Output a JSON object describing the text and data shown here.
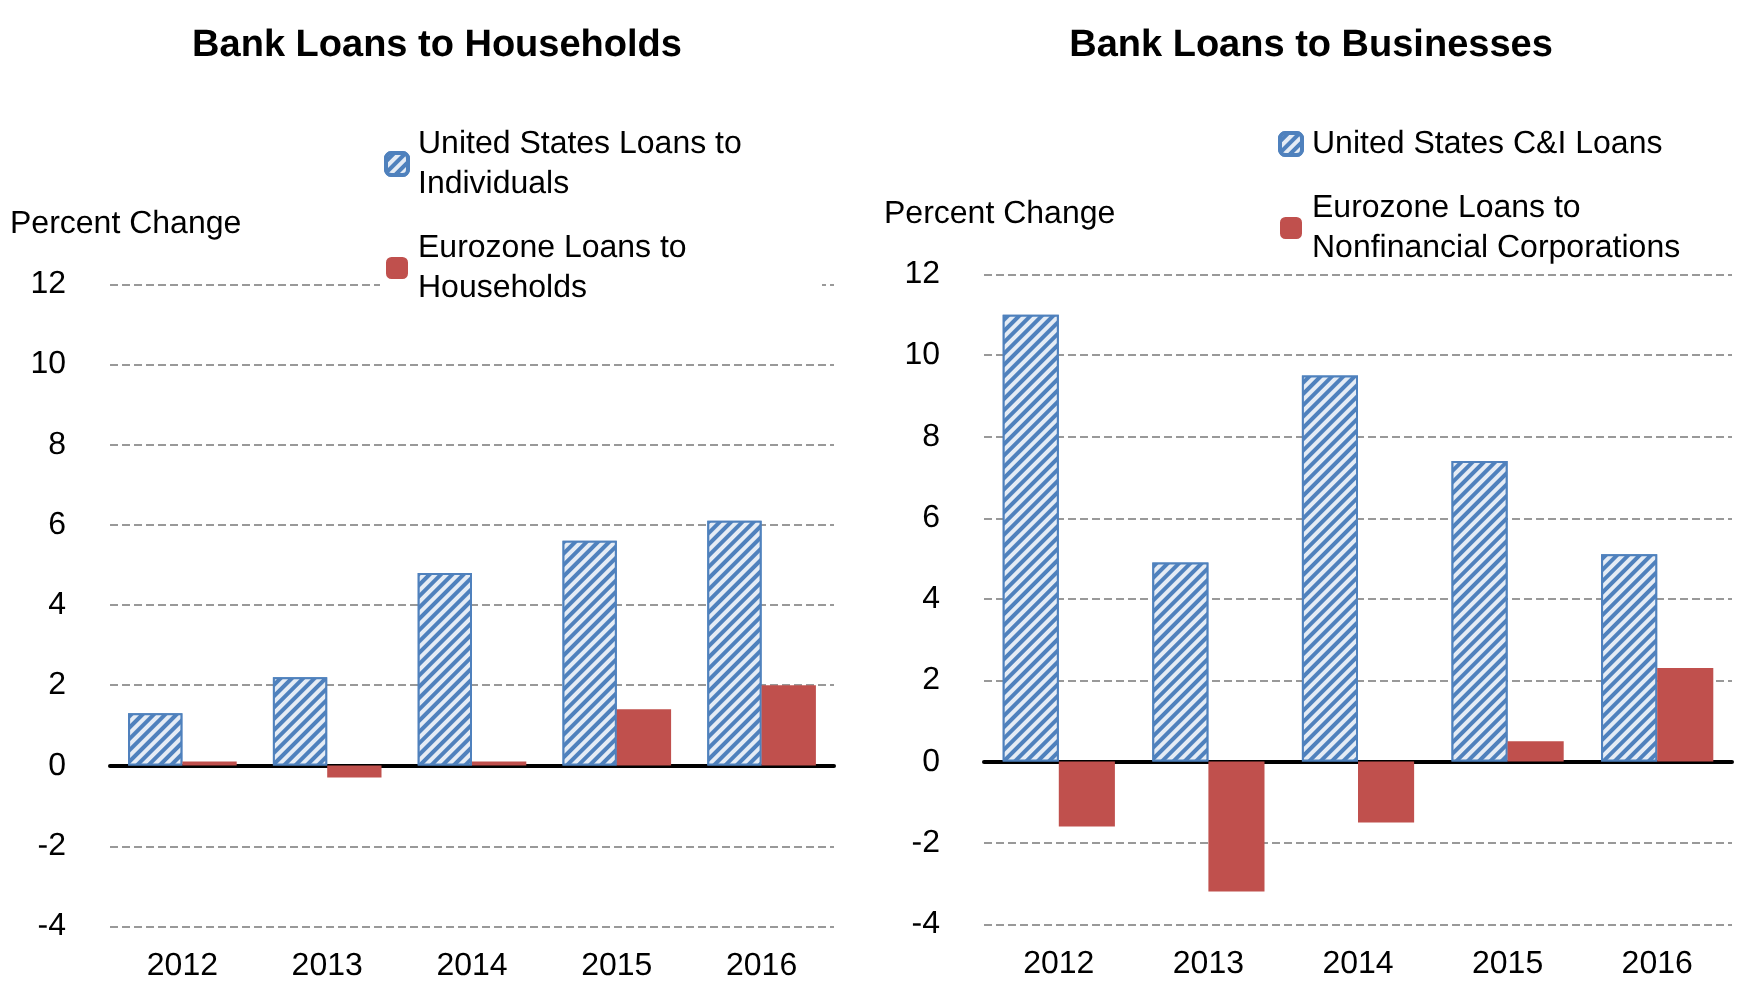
{
  "chart_data": [
    {
      "type": "bar",
      "title": "Bank Loans to Households",
      "ylabel": "Percent Change",
      "categories": [
        "2012",
        "2013",
        "2014",
        "2015",
        "2016"
      ],
      "series": [
        {
          "name": "United States Loans to Individuals",
          "color": "#4f81bd",
          "values": [
            1.3,
            2.2,
            4.8,
            5.6,
            6.1
          ]
        },
        {
          "name": "Eurozone Loans to Households",
          "color": "#c0504d",
          "values": [
            0.1,
            -0.3,
            0.1,
            1.4,
            2.0
          ]
        }
      ],
      "ylim": [
        -4,
        12
      ],
      "yticks": [
        -4,
        -2,
        0,
        2,
        4,
        6,
        8,
        10,
        12
      ],
      "grid": "y",
      "legend": "top right"
    },
    {
      "type": "bar",
      "title": "Bank Loans to Businesses",
      "ylabel": "Percent Change",
      "categories": [
        "2012",
        "2013",
        "2014",
        "2015",
        "2016"
      ],
      "series": [
        {
          "name": "United States C&I Loans",
          "color": "#4f81bd",
          "values": [
            11.0,
            4.9,
            9.5,
            7.4,
            5.1
          ]
        },
        {
          "name": "Eurozone Loans to Nonfinancial Corporations",
          "color": "#c0504d",
          "values": [
            -1.6,
            -3.2,
            -1.5,
            0.5,
            2.3
          ]
        }
      ],
      "ylim": [
        -4,
        12
      ],
      "yticks": [
        -4,
        -2,
        0,
        2,
        4,
        6,
        8,
        10,
        12
      ],
      "grid": "y",
      "legend": "top right"
    }
  ]
}
